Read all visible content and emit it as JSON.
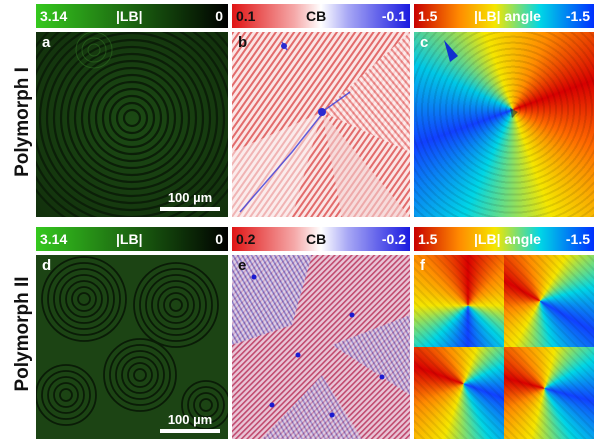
{
  "row_labels": [
    "Polymorph I",
    "Polymorph II"
  ],
  "colorbars": {
    "lb": {
      "max": "3.14",
      "title": "|LB|",
      "min": "0"
    },
    "cb_top": {
      "max": "0.1",
      "title": "CB",
      "min": "-0.1"
    },
    "cb_bottom": {
      "max": "0.2",
      "title": "CB",
      "min": "-0.2"
    },
    "angle": {
      "max": "1.5",
      "title": "|LB| angle",
      "min": "-1.5"
    }
  },
  "panels": {
    "a": "a",
    "b": "b",
    "c": "c",
    "d": "d",
    "e": "e",
    "f": "f"
  },
  "scale_bar": "100 µm",
  "colors": {
    "lb_high": "#35c81e",
    "lb_low": "#0a1a06",
    "cb_pos": "#e01515",
    "cb_neg": "#1a1ae0",
    "angle_stops": [
      "#c80000",
      "#ff8a00",
      "#f5e600",
      "#00d6e6",
      "#0030ff"
    ]
  }
}
